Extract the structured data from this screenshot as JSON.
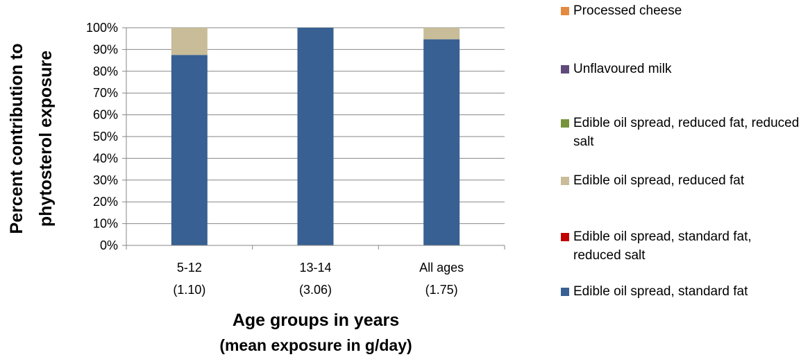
{
  "chart_data": {
    "type": "bar",
    "stacked": true,
    "title": "",
    "title_visible_partial": true,
    "xlabel_line1": "Age groups in years",
    "xlabel_line2": "(mean exposure in g/day)",
    "ylabel_line1": "Percent contribution to",
    "ylabel_line2": "phytosterol exposure",
    "categories": [
      {
        "label": "5-12",
        "sub": "(1.10)"
      },
      {
        "label": "13-14",
        "sub": "(3.06)"
      },
      {
        "label": "All ages",
        "sub": "(1.75)"
      }
    ],
    "ylim": [
      0,
      100
    ],
    "yticks": [
      "0%",
      "10%",
      "20%",
      "30%",
      "40%",
      "50%",
      "60%",
      "70%",
      "80%",
      "90%",
      "100%"
    ],
    "grid": true,
    "legend_position": "right",
    "series": [
      {
        "name": "Edible oil spread, standard fat",
        "color": "#386093",
        "values": [
          87.5,
          100,
          94.7
        ]
      },
      {
        "name": "Edible oil spread, standard fat, reduced salt",
        "color": "#c00000",
        "values": [
          0,
          0,
          0
        ]
      },
      {
        "name": "Edible oil spread, reduced fat",
        "color": "#c8bd98",
        "values": [
          12.5,
          0,
          5.3
        ]
      },
      {
        "name": "Edible oil spread, reduced fat, reduced salt",
        "color": "#77933c",
        "values": [
          0,
          0,
          0
        ]
      },
      {
        "name": "Unflavoured milk",
        "color": "#604a7b",
        "values": [
          0,
          0,
          0
        ]
      },
      {
        "name": "Processed cheese",
        "color": "#e48a40",
        "values": [
          0,
          0,
          0
        ]
      }
    ],
    "legend_order": [
      5,
      4,
      3,
      2,
      1,
      0
    ]
  }
}
